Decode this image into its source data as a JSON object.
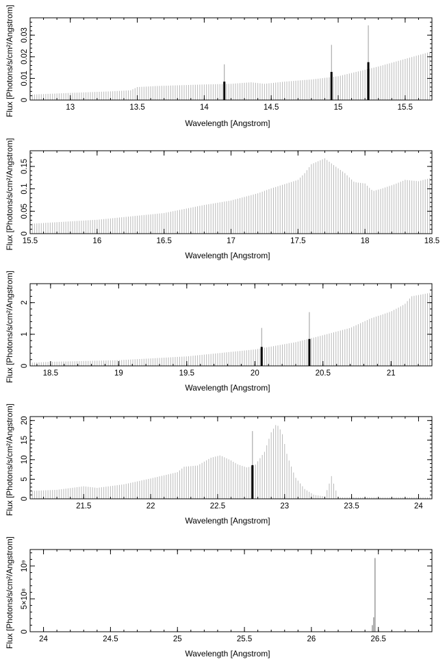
{
  "chart_data": [
    {
      "type": "bar",
      "xlabel": "Wavelength [Angstrom]",
      "ylabel": "Flux [Photons/s/cm²/Angstrom]",
      "xlim": [
        12.7,
        15.7
      ],
      "ylim": [
        0,
        0.038
      ],
      "xticks": [
        {
          "v": 13,
          "label": "13"
        },
        {
          "v": 13.5,
          "label": "13.5"
        },
        {
          "v": 14,
          "label": "14"
        },
        {
          "v": 14.5,
          "label": "14.5"
        },
        {
          "v": 15,
          "label": "15"
        },
        {
          "v": 15.5,
          "label": "15.5"
        }
      ],
      "yticks": [
        {
          "v": 0,
          "label": "0"
        },
        {
          "v": 0.01,
          "label": "0.01"
        },
        {
          "v": 0.02,
          "label": "0.02"
        },
        {
          "v": 0.03,
          "label": "0.03"
        }
      ],
      "continuum": [
        [
          12.7,
          0.0025
        ],
        [
          13.0,
          0.0033
        ],
        [
          13.3,
          0.004
        ],
        [
          13.45,
          0.0045
        ],
        [
          13.5,
          0.006
        ],
        [
          13.65,
          0.0065
        ],
        [
          14.0,
          0.0072
        ],
        [
          14.2,
          0.0075
        ],
        [
          14.35,
          0.0082
        ],
        [
          14.45,
          0.0075
        ],
        [
          14.6,
          0.0085
        ],
        [
          14.8,
          0.0095
        ],
        [
          15.0,
          0.011
        ],
        [
          15.2,
          0.014
        ],
        [
          15.3,
          0.0155
        ],
        [
          15.5,
          0.019
        ],
        [
          15.7,
          0.0225
        ]
      ],
      "lines": [
        {
          "x": 14.15,
          "y": 0.0085,
          "peak": 0.0165
        },
        {
          "x": 14.95,
          "y": 0.013,
          "peak": 0.0255
        },
        {
          "x": 15.225,
          "y": 0.0175,
          "peak": 0.0345
        }
      ]
    },
    {
      "type": "bar",
      "xlabel": "Wavelength [Angstrom]",
      "ylabel": "Flux [Photons/s/cm²/Angstrom]",
      "xlim": [
        15.5,
        18.5
      ],
      "ylim": [
        0,
        0.185
      ],
      "xticks": [
        {
          "v": 15.5,
          "label": "15.5"
        },
        {
          "v": 16,
          "label": "16"
        },
        {
          "v": 16.5,
          "label": "16.5"
        },
        {
          "v": 17,
          "label": "17"
        },
        {
          "v": 17.5,
          "label": "17.5"
        },
        {
          "v": 18,
          "label": "18"
        },
        {
          "v": 18.5,
          "label": "18.5"
        }
      ],
      "yticks": [
        {
          "v": 0,
          "label": "0"
        },
        {
          "v": 0.05,
          "label": "0.05"
        },
        {
          "v": 0.1,
          "label": "0.1"
        },
        {
          "v": 0.15,
          "label": "0.15"
        }
      ],
      "continuum": [
        [
          15.5,
          0.022
        ],
        [
          16.0,
          0.031
        ],
        [
          16.5,
          0.046
        ],
        [
          16.8,
          0.064
        ],
        [
          17.0,
          0.074
        ],
        [
          17.2,
          0.09
        ],
        [
          17.3,
          0.101
        ],
        [
          17.5,
          0.12
        ],
        [
          17.55,
          0.135
        ],
        [
          17.6,
          0.155
        ],
        [
          17.7,
          0.168
        ],
        [
          17.78,
          0.15
        ],
        [
          17.85,
          0.135
        ],
        [
          17.92,
          0.115
        ],
        [
          18.0,
          0.112
        ],
        [
          18.03,
          0.103
        ],
        [
          18.06,
          0.095
        ],
        [
          18.12,
          0.1
        ],
        [
          18.22,
          0.11
        ],
        [
          18.3,
          0.12
        ],
        [
          18.4,
          0.117
        ],
        [
          18.5,
          0.125
        ]
      ],
      "lines": []
    },
    {
      "type": "bar",
      "xlabel": "Wavelength [Angstrom]",
      "ylabel": "Flux [Photons/s/cm²/Angstrom]",
      "xlim": [
        18.35,
        21.3
      ],
      "ylim": [
        0,
        2.6
      ],
      "xticks": [
        {
          "v": 18.5,
          "label": "18.5"
        },
        {
          "v": 19,
          "label": "19"
        },
        {
          "v": 19.5,
          "label": "19.5"
        },
        {
          "v": 20,
          "label": "20"
        },
        {
          "v": 20.5,
          "label": "20.5"
        },
        {
          "v": 21,
          "label": "21"
        }
      ],
      "yticks": [
        {
          "v": 0,
          "label": "0"
        },
        {
          "v": 1,
          "label": "1"
        },
        {
          "v": 2,
          "label": "2"
        }
      ],
      "continuum": [
        [
          18.35,
          0.1
        ],
        [
          18.5,
          0.13
        ],
        [
          19.0,
          0.18
        ],
        [
          19.5,
          0.3
        ],
        [
          20.0,
          0.52
        ],
        [
          20.3,
          0.75
        ],
        [
          20.5,
          0.97
        ],
        [
          20.7,
          1.2
        ],
        [
          20.85,
          1.5
        ],
        [
          21.0,
          1.72
        ],
        [
          21.1,
          1.95
        ],
        [
          21.15,
          2.2
        ],
        [
          21.3,
          2.32
        ]
      ],
      "lines": [
        {
          "x": 20.05,
          "y": 0.6,
          "peak": 1.2
        },
        {
          "x": 20.4,
          "y": 0.85,
          "peak": 1.7
        }
      ]
    },
    {
      "type": "bar",
      "xlabel": "Wavelength [Angstrom]",
      "ylabel": "Flux [Photons/s/cm²/Angstrom]",
      "xlim": [
        21.1,
        24.1
      ],
      "ylim": [
        0,
        21
      ],
      "xticks": [
        {
          "v": 21.5,
          "label": "21.5"
        },
        {
          "v": 22,
          "label": "22"
        },
        {
          "v": 22.5,
          "label": "22.5"
        },
        {
          "v": 23,
          "label": "23"
        },
        {
          "v": 23.5,
          "label": "23.5"
        },
        {
          "v": 24,
          "label": "24"
        }
      ],
      "yticks": [
        {
          "v": 0,
          "label": "0"
        },
        {
          "v": 5,
          "label": "5"
        },
        {
          "v": 10,
          "label": "10"
        },
        {
          "v": 15,
          "label": "15"
        },
        {
          "v": 20,
          "label": "20"
        }
      ],
      "continuum": [
        [
          21.1,
          2.0
        ],
        [
          21.3,
          2.3
        ],
        [
          21.5,
          3.2
        ],
        [
          21.6,
          2.8
        ],
        [
          21.8,
          3.7
        ],
        [
          22.0,
          5.2
        ],
        [
          22.2,
          6.8
        ],
        [
          22.25,
          8.2
        ],
        [
          22.35,
          8.5
        ],
        [
          22.45,
          10.5
        ],
        [
          22.52,
          11.1
        ],
        [
          22.6,
          9.8
        ],
        [
          22.65,
          8.8
        ],
        [
          22.72,
          8.0
        ],
        [
          22.78,
          8.6
        ],
        [
          22.85,
          12.0
        ],
        [
          22.9,
          17.0
        ],
        [
          22.94,
          19.2
        ],
        [
          22.98,
          17.0
        ],
        [
          23.02,
          11.0
        ],
        [
          23.08,
          5.5
        ],
        [
          23.15,
          2.5
        ],
        [
          23.22,
          1.0
        ],
        [
          23.3,
          0.6
        ],
        [
          23.33,
          3.5
        ],
        [
          23.35,
          5.8
        ],
        [
          23.37,
          3.5
        ],
        [
          23.4,
          0.4
        ],
        [
          24.1,
          0.4
        ]
      ],
      "lines": [
        {
          "x": 22.76,
          "y": 8.6,
          "peak": 17.3
        }
      ]
    },
    {
      "type": "bar",
      "xlabel": "Wavelength [Angstrom]",
      "ylabel": "Flux [Photons/s/cm²/Angstrom]",
      "xlim": [
        23.9,
        26.9
      ],
      "ylim": [
        0,
        1250000000
      ],
      "xticks": [
        {
          "v": 24,
          "label": "24"
        },
        {
          "v": 24.5,
          "label": "24.5"
        },
        {
          "v": 25,
          "label": "25"
        },
        {
          "v": 25.5,
          "label": "25.5"
        },
        {
          "v": 26,
          "label": "26"
        },
        {
          "v": 26.5,
          "label": "26.5"
        }
      ],
      "yticks": [
        {
          "v": 0,
          "label": "0"
        },
        {
          "v": 500000000,
          "label": "5×10⁸"
        },
        {
          "v": 1000000000,
          "label": "10⁹"
        }
      ],
      "continuum": [
        [
          23.9,
          0
        ],
        [
          26.9,
          0
        ]
      ],
      "lines": [],
      "spikes": [
        {
          "x": 26.455,
          "y": 100000000
        },
        {
          "x": 26.465,
          "y": 220000000
        },
        {
          "x": 26.475,
          "y": 1120000000
        }
      ]
    }
  ]
}
